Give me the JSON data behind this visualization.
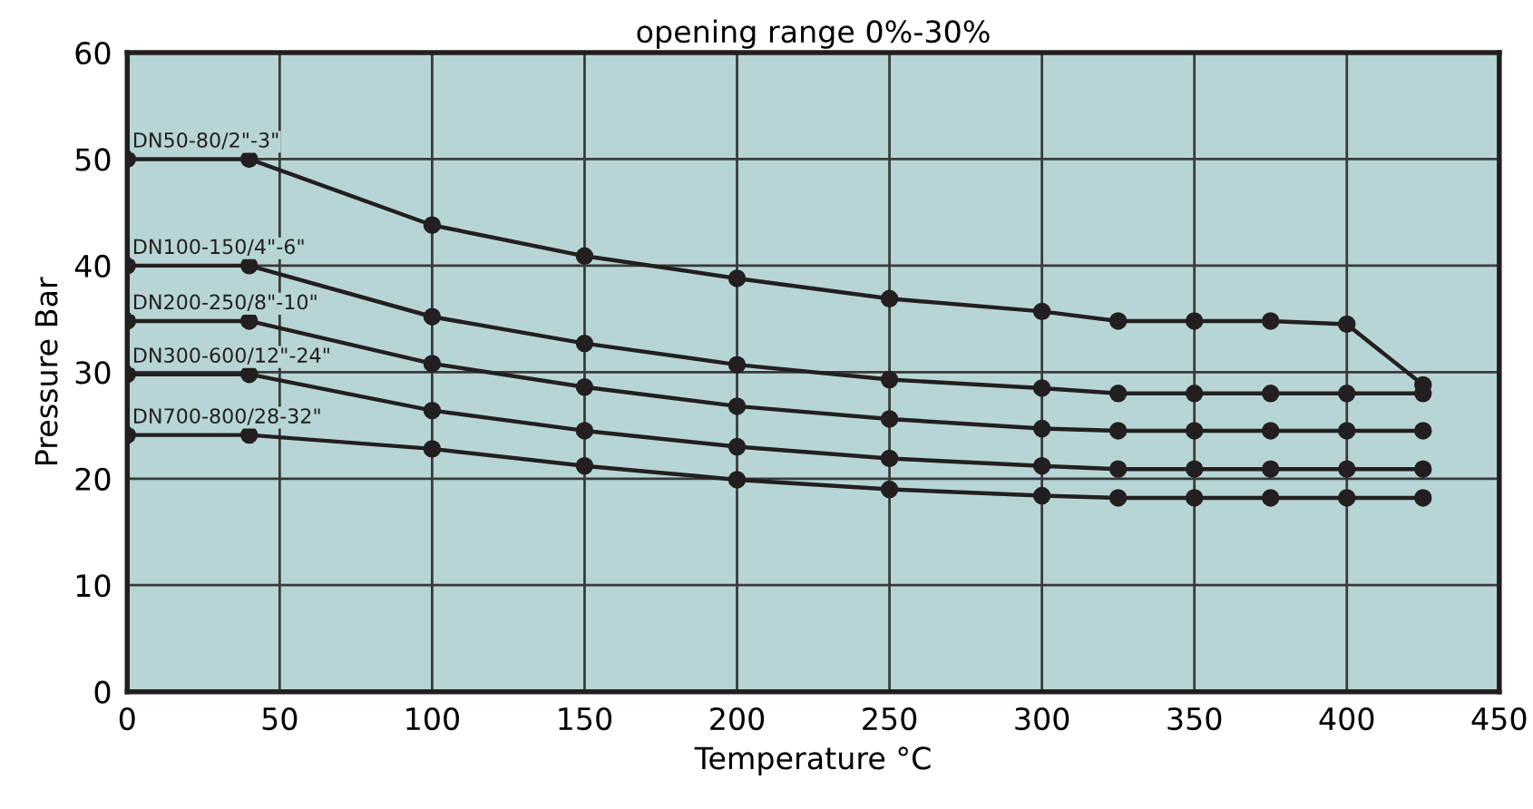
{
  "chart_data": {
    "type": "line",
    "title": "opening range 0%-30%",
    "xlabel": "Temperature °C",
    "ylabel": "Pressure Bar",
    "x": [
      0,
      40,
      100,
      150,
      200,
      250,
      300,
      325,
      350,
      375,
      400,
      425
    ],
    "series": [
      {
        "name": "DN50-80/2\"-3\"",
        "color": "#231f20",
        "values": [
          50,
          50,
          43.8,
          40.9,
          38.8,
          36.9,
          35.7,
          34.8,
          34.8,
          34.8,
          34.5,
          28.8
        ]
      },
      {
        "name": "DN100-150/4\"-6\"",
        "color": "#231f20",
        "values": [
          40,
          40,
          35.2,
          32.7,
          30.7,
          29.3,
          28.5,
          28,
          28,
          28,
          28,
          28
        ]
      },
      {
        "name": "DN200-250/8\"-10\"",
        "color": "#231f20",
        "values": [
          34.8,
          34.8,
          30.8,
          28.6,
          26.8,
          25.6,
          24.7,
          24.5,
          24.5,
          24.5,
          24.5,
          24.5
        ]
      },
      {
        "name": "DN300-600/12\"-24\"",
        "color": "#231f20",
        "values": [
          29.8,
          29.8,
          26.4,
          24.5,
          23,
          21.9,
          21.2,
          20.9,
          20.9,
          20.9,
          20.9,
          20.9
        ]
      },
      {
        "name": "DN700-800/28-32\"",
        "color": "#231f20",
        "values": [
          24.1,
          24.1,
          22.8,
          21.2,
          19.9,
          19,
          18.4,
          18.2,
          18.2,
          18.2,
          18.2,
          18.2
        ]
      }
    ],
    "xlim": [
      0,
      450
    ],
    "ylim": [
      0,
      60
    ],
    "xticks": [
      0,
      50,
      100,
      150,
      200,
      250,
      300,
      350,
      400,
      450
    ],
    "yticks": [
      0,
      10,
      20,
      30,
      40,
      50,
      60
    ],
    "grid": true,
    "marker": "circle",
    "line_style": "solid",
    "legend": false
  }
}
